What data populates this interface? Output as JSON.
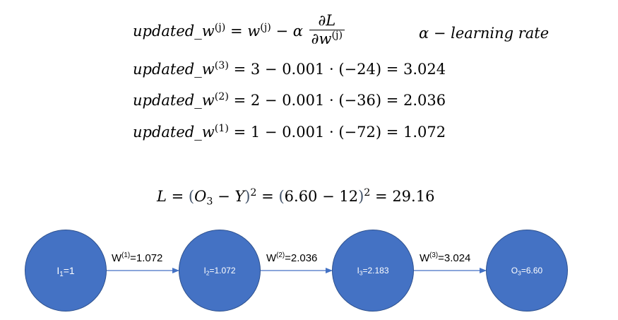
{
  "formulas": {
    "rule": {
      "lhs": "updated_w",
      "lhs_sup": "(j)",
      "eq": "=",
      "w": "w",
      "w_sup": "(j)",
      "minus_alpha": " − α",
      "num": "∂L",
      "den_base": "∂w",
      "den_sup": "(j)",
      "note": "α − learning rate"
    },
    "updates": [
      {
        "lhs": "updated_w",
        "sup": "(3)",
        "rhs": " = 3 − 0.001 · (−24) = 3.024"
      },
      {
        "lhs": "updated_w",
        "sup": "(2)",
        "rhs": " = 2 − 0.001 · (−36) = 2.036"
      },
      {
        "lhs": "updated_w",
        "sup": "(1)",
        "rhs": " = 1 − 0.001 · (−72) = 1.072"
      }
    ],
    "loss": {
      "lhs": "L = ",
      "p1_open": "(",
      "o": "O",
      "o_sub": "3",
      "minus_y": " − Y",
      "p1_close": ")",
      "sq1": "2",
      "mid": " = ",
      "p2_open": "(",
      "p2_inner": "6.60 − 12",
      "p2_close": ")",
      "sq2": "2",
      "result": " = 29.16"
    }
  },
  "network": {
    "colors": {
      "node_fill": "#4472C4",
      "node_border": "#2F528F",
      "edge": "#4472C4"
    },
    "nodes": [
      {
        "base": "I",
        "sub": "1",
        "value": "=1"
      },
      {
        "base": "I",
        "sub": "2",
        "value": "=1.072"
      },
      {
        "base": "I",
        "sub": "3",
        "value": "=2.183"
      },
      {
        "base": "O",
        "sub": "3",
        "value": "=6.60"
      }
    ],
    "edges": [
      {
        "base": "W",
        "sup": "(1)",
        "value": "=1.072"
      },
      {
        "base": "W",
        "sup": "(2)",
        "value": "=2.036"
      },
      {
        "base": "W",
        "sup": "(3)",
        "value": "=3.024"
      }
    ]
  }
}
